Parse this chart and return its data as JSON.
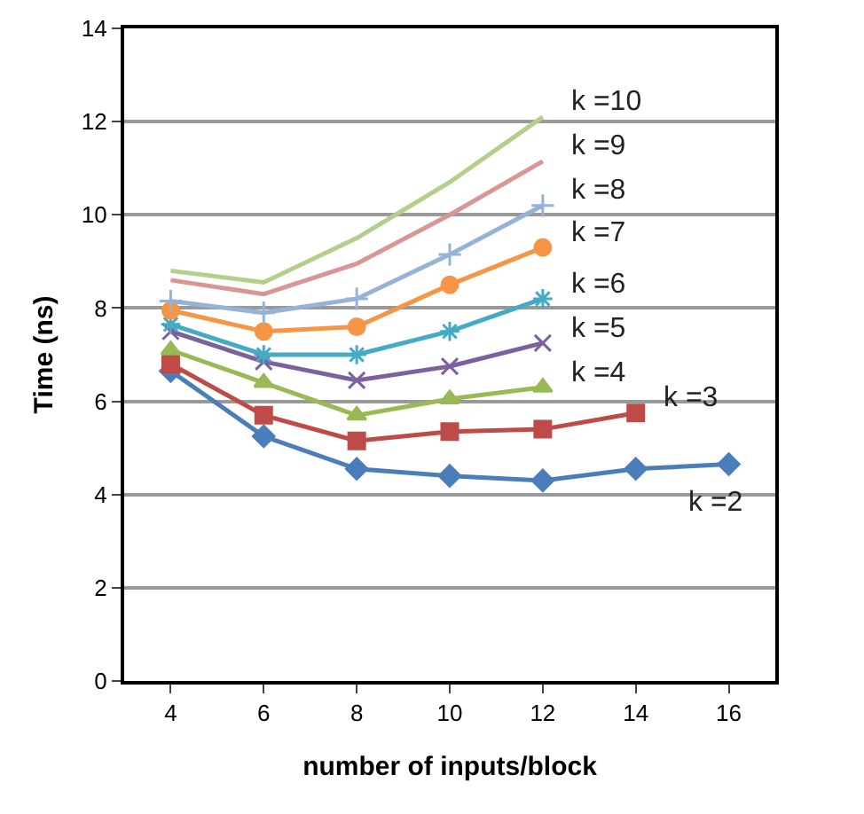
{
  "chart_data": {
    "type": "line",
    "xlabel": "number of inputs/block",
    "ylabel": "Time (ns)",
    "x": [
      4,
      6,
      8,
      10,
      12,
      14,
      16
    ],
    "xlim": [
      3,
      17
    ],
    "xticks": [
      4,
      6,
      8,
      10,
      12,
      14,
      16
    ],
    "ylim": [
      0,
      14
    ],
    "yticks": [
      0,
      2,
      4,
      6,
      8,
      10,
      12,
      14
    ],
    "grid": "y",
    "legend": false,
    "series": [
      {
        "name": "k =2",
        "color": "#4a7ebb",
        "marker": "diamond",
        "values": [
          6.65,
          5.25,
          4.55,
          4.4,
          4.3,
          4.55,
          4.65
        ]
      },
      {
        "name": "k =3",
        "color": "#be4b48",
        "marker": "square",
        "values": [
          6.8,
          5.7,
          5.15,
          5.35,
          5.4,
          5.75,
          null
        ]
      },
      {
        "name": "k =4",
        "color": "#98b954",
        "marker": "triangle",
        "values": [
          7.1,
          6.4,
          5.7,
          6.05,
          6.3,
          null,
          null
        ]
      },
      {
        "name": "k =5",
        "color": "#7d60a0",
        "marker": "cross",
        "values": [
          7.5,
          6.85,
          6.45,
          6.75,
          7.25,
          null,
          null
        ]
      },
      {
        "name": "k =6",
        "color": "#46aac5",
        "marker": "cross",
        "values": [
          7.65,
          7.0,
          7.0,
          7.5,
          8.2,
          null,
          null
        ]
      },
      {
        "name": "k =7",
        "color": "#f69546",
        "marker": "circle",
        "values": [
          7.95,
          7.5,
          7.6,
          8.5,
          9.3,
          null,
          null
        ]
      },
      {
        "name": "k =8",
        "color": "#95b3d7",
        "marker": "cross",
        "values": [
          8.15,
          7.9,
          8.2,
          9.15,
          10.2,
          null,
          null
        ]
      },
      {
        "name": "k =9",
        "color": "#d99694",
        "marker": "none",
        "values": [
          8.6,
          8.3,
          8.95,
          10.0,
          11.15,
          null,
          null
        ]
      },
      {
        "name": "k =10",
        "color": "#b3cf8a",
        "marker": "none",
        "values": [
          8.8,
          8.55,
          9.5,
          10.7,
          12.1,
          null,
          null
        ]
      }
    ]
  }
}
